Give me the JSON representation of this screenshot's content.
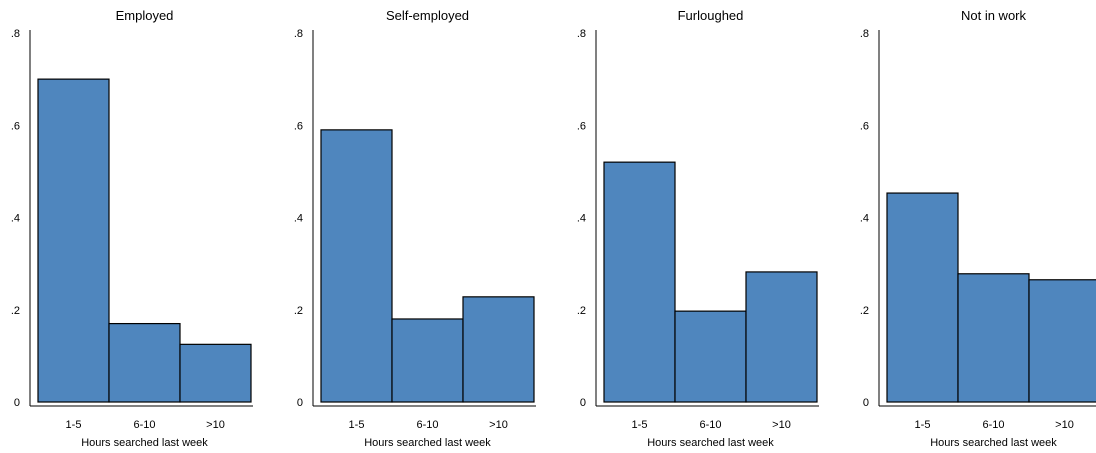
{
  "chart_data": [
    {
      "type": "bar",
      "title": "Employed",
      "categories": [
        "1-5",
        "6-10",
        ">10"
      ],
      "values": [
        0.7,
        0.17,
        0.125
      ],
      "xlabel": "Hours searched last week",
      "ylabel": "",
      "ylim": [
        0,
        0.8
      ],
      "yticks": [
        0,
        0.2,
        0.4,
        0.6,
        0.8
      ],
      "ytick_labels": [
        "0",
        ".2",
        ".4",
        ".6",
        ".8"
      ],
      "grid": false,
      "bar_color": "#4f86be"
    },
    {
      "type": "bar",
      "title": "Self-employed",
      "categories": [
        "1-5",
        "6-10",
        ">10"
      ],
      "values": [
        0.59,
        0.18,
        0.228
      ],
      "xlabel": "Hours searched last week",
      "ylabel": "",
      "ylim": [
        0,
        0.8
      ],
      "yticks": [
        0,
        0.2,
        0.4,
        0.6,
        0.8
      ],
      "ytick_labels": [
        "0",
        ".2",
        ".4",
        ".6",
        ".8"
      ],
      "grid": false,
      "bar_color": "#4f86be"
    },
    {
      "type": "bar",
      "title": "Furloughed",
      "categories": [
        "1-5",
        "6-10",
        ">10"
      ],
      "values": [
        0.52,
        0.197,
        0.282
      ],
      "xlabel": "Hours searched last week",
      "ylabel": "",
      "ylim": [
        0,
        0.8
      ],
      "yticks": [
        0,
        0.2,
        0.4,
        0.6,
        0.8
      ],
      "ytick_labels": [
        "0",
        ".2",
        ".4",
        ".6",
        ".8"
      ],
      "grid": false,
      "bar_color": "#4f86be"
    },
    {
      "type": "bar",
      "title": "Not in work",
      "categories": [
        "1-5",
        "6-10",
        ">10"
      ],
      "values": [
        0.453,
        0.278,
        0.265
      ],
      "xlabel": "Hours searched last week",
      "ylabel": "",
      "ylim": [
        0,
        0.8
      ],
      "yticks": [
        0,
        0.2,
        0.4,
        0.6,
        0.8
      ],
      "ytick_labels": [
        "0",
        ".2",
        ".4",
        ".6",
        ".8"
      ],
      "grid": false,
      "bar_color": "#4f86be"
    }
  ]
}
